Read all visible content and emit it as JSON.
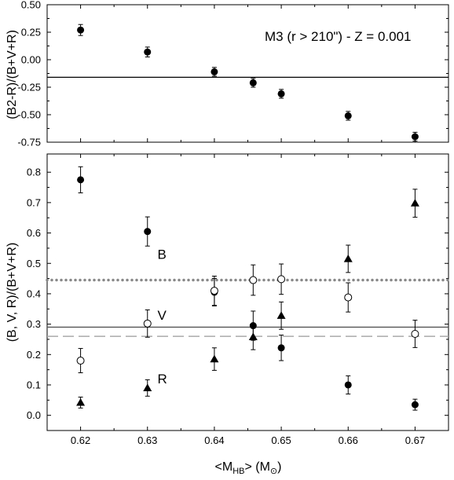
{
  "chart_data": [
    {
      "type": "scatter",
      "panel": "top",
      "title": "",
      "annotation": "M3 (r > 210\") - Z = 0.001",
      "xlabel": "",
      "ylabel": "(B2-R)/(B+V+R)",
      "xlim": [
        0.615,
        0.675
      ],
      "ylim": [
        -0.75,
        0.5
      ],
      "x_ticks": [
        0.62,
        0.63,
        0.64,
        0.65,
        0.66,
        0.67
      ],
      "y_ticks": [
        "0.50",
        "0.25",
        "0.00",
        "-0.25",
        "-0.50",
        "-0.75"
      ],
      "y_tick_values": [
        0.5,
        0.25,
        0.0,
        -0.25,
        -0.5,
        -0.75
      ],
      "reference_line": {
        "y": -0.16,
        "style": "solid",
        "color": "#000000"
      },
      "series": [
        {
          "marker": "filled-circle",
          "points": [
            {
              "x": 0.62,
              "y": 0.27,
              "err": 0.05
            },
            {
              "x": 0.63,
              "y": 0.07,
              "err": 0.045
            },
            {
              "x": 0.64,
              "y": -0.11,
              "err": 0.04
            },
            {
              "x": 0.6458,
              "y": -0.21,
              "err": 0.04
            },
            {
              "x": 0.65,
              "y": -0.31,
              "err": 0.04
            },
            {
              "x": 0.66,
              "y": -0.51,
              "err": 0.04
            },
            {
              "x": 0.67,
              "y": -0.7,
              "err": 0.04
            }
          ]
        }
      ]
    },
    {
      "type": "scatter",
      "panel": "bottom",
      "title": "",
      "xlabel": "<M_HB> (M_sun)",
      "xlabel_parts": {
        "open": "<M",
        "sub": "HB",
        "close": "> (M",
        "sym": "⊙",
        "end": ")"
      },
      "ylabel": "(B, V, R)/(B+V+R)",
      "xlim": [
        0.615,
        0.675
      ],
      "ylim": [
        -0.05,
        0.86
      ],
      "x_ticks": [
        "0.62",
        "0.63",
        "0.64",
        "0.65",
        "0.66",
        "0.67"
      ],
      "x_tick_values": [
        0.62,
        0.63,
        0.64,
        0.65,
        0.66,
        0.67
      ],
      "y_ticks": [
        "0.0",
        "0.1",
        "0.2",
        "0.3",
        "0.4",
        "0.5",
        "0.6",
        "0.7",
        "0.8"
      ],
      "y_tick_values": [
        0.0,
        0.1,
        0.2,
        0.3,
        0.4,
        0.5,
        0.6,
        0.7,
        0.8
      ],
      "reference_lines": [
        {
          "name": "B",
          "y": 0.445,
          "style": "dotted",
          "color": "#888888"
        },
        {
          "name": "V",
          "y": 0.29,
          "style": "solid",
          "color": "#555555"
        },
        {
          "name": "R",
          "y": 0.26,
          "style": "dashed",
          "color": "#aaaaaa"
        }
      ],
      "series": [
        {
          "name": "B",
          "marker": "filled-circle",
          "points": [
            {
              "x": 0.62,
              "y": 0.775,
              "err": 0.043
            },
            {
              "x": 0.63,
              "y": 0.605,
              "err": 0.048
            },
            {
              "x": 0.64,
              "y": 0.405,
              "err": 0.045
            },
            {
              "x": 0.6458,
              "y": 0.295,
              "err": 0.048
            },
            {
              "x": 0.65,
              "y": 0.222,
              "err": 0.042
            },
            {
              "x": 0.66,
              "y": 0.1,
              "err": 0.03
            },
            {
              "x": 0.67,
              "y": 0.035,
              "err": 0.018
            }
          ]
        },
        {
          "name": "V",
          "marker": "open-circle",
          "points": [
            {
              "x": 0.62,
              "y": 0.18,
              "err": 0.04
            },
            {
              "x": 0.63,
              "y": 0.302,
              "err": 0.045
            },
            {
              "x": 0.64,
              "y": 0.41,
              "err": 0.048
            },
            {
              "x": 0.6458,
              "y": 0.445,
              "err": 0.05
            },
            {
              "x": 0.65,
              "y": 0.448,
              "err": 0.05
            },
            {
              "x": 0.66,
              "y": 0.388,
              "err": 0.048
            },
            {
              "x": 0.67,
              "y": 0.268,
              "err": 0.045
            }
          ]
        },
        {
          "name": "R",
          "marker": "filled-triangle",
          "points": [
            {
              "x": 0.62,
              "y": 0.042,
              "err": 0.018
            },
            {
              "x": 0.63,
              "y": 0.09,
              "err": 0.027
            },
            {
              "x": 0.64,
              "y": 0.185,
              "err": 0.037
            },
            {
              "x": 0.6458,
              "y": 0.258,
              "err": 0.042
            },
            {
              "x": 0.65,
              "y": 0.328,
              "err": 0.045
            },
            {
              "x": 0.66,
              "y": 0.515,
              "err": 0.045
            },
            {
              "x": 0.67,
              "y": 0.698,
              "err": 0.046
            }
          ]
        }
      ],
      "series_labels": [
        {
          "text": "B",
          "x": 0.6315,
          "y": 0.53
        },
        {
          "text": "V",
          "x": 0.6315,
          "y": 0.33
        },
        {
          "text": "R",
          "x": 0.6315,
          "y": 0.12
        }
      ]
    }
  ]
}
